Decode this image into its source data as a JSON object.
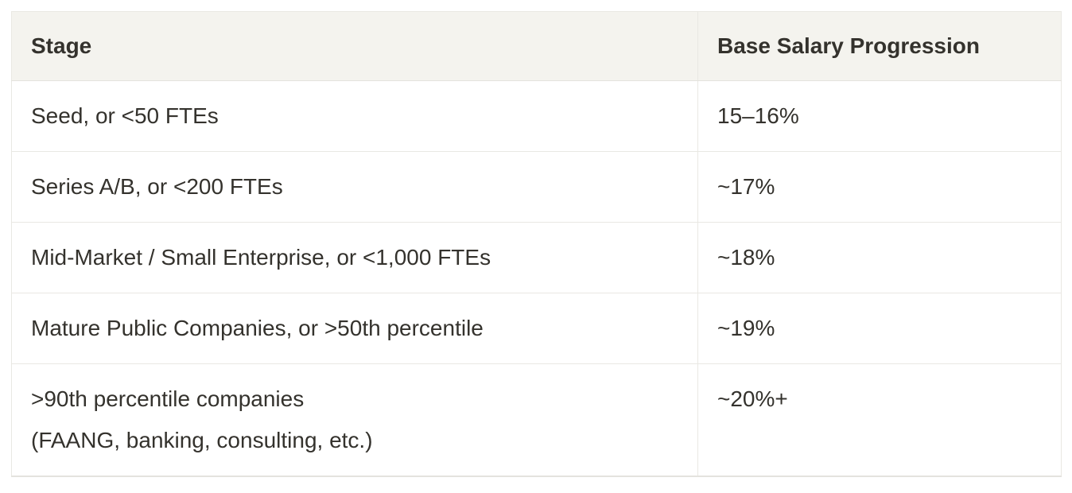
{
  "table": {
    "columns": [
      {
        "label": "Stage"
      },
      {
        "label": "Base Salary Progression"
      }
    ],
    "rows": [
      {
        "stage": "Seed, or <50 FTEs",
        "progression": "15–16%"
      },
      {
        "stage": "Series A/B, or <200 FTEs",
        "progression": "~17%"
      },
      {
        "stage": "Mid-Market / Small Enterprise, or <1,000 FTEs",
        "progression": "~18%"
      },
      {
        "stage": "Mature Public Companies, or >50th percentile",
        "progression": "~19%"
      },
      {
        "stage": ">90th percentile companies\n(FAANG, banking, consulting, etc.)",
        "progression": "~20%+"
      }
    ],
    "colors": {
      "page_bg": "#ffffff",
      "header_bg": "#f4f3ee",
      "border": "#e9e8e3",
      "text": "#34322d"
    }
  }
}
